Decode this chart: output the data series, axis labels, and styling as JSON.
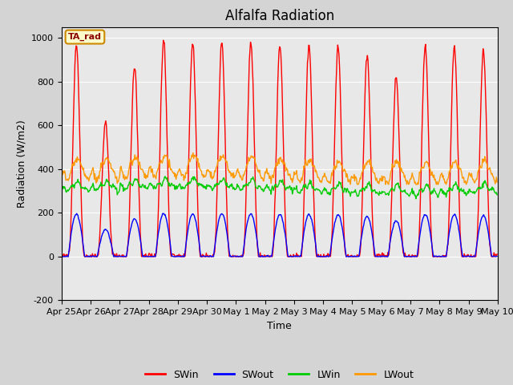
{
  "title": "Alfalfa Radiation",
  "xlabel": "Time",
  "ylabel": "Radiation (W/m2)",
  "ylim": [
    -200,
    1050
  ],
  "tick_labels": [
    "Apr 25",
    "Apr 26",
    "Apr 27",
    "Apr 28",
    "Apr 29",
    "Apr 30",
    "May 1",
    "May 2",
    "May 3",
    "May 4",
    "May 5",
    "May 6",
    "May 7",
    "May 8",
    "May 9",
    "May 10"
  ],
  "series": [
    "SWin",
    "SWout",
    "LWin",
    "LWout"
  ],
  "colors": [
    "#ff0000",
    "#0000ff",
    "#00cc00",
    "#ff9900"
  ],
  "fig_bg": "#d4d4d4",
  "plot_bg": "#e8e8e8",
  "annotation_text": "TA_rad",
  "annotation_bg": "#ffffcc",
  "annotation_border": "#cc8800",
  "annotation_text_color": "#8b0000",
  "grid_color": "#ffffff",
  "linewidth": 1.0,
  "yticks": [
    -200,
    0,
    200,
    400,
    600,
    800,
    1000
  ],
  "title_fontsize": 12,
  "label_fontsize": 9,
  "tick_fontsize": 8
}
